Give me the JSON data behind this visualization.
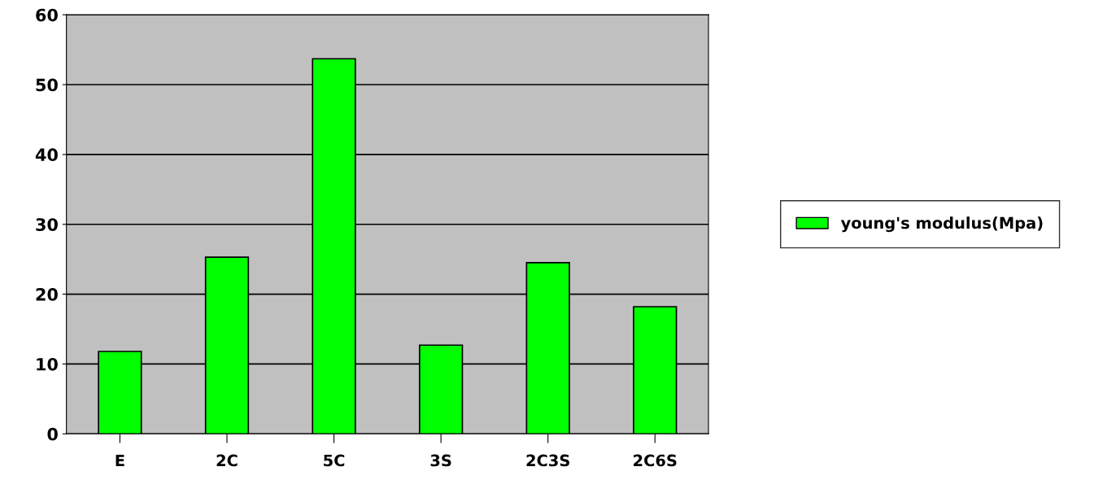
{
  "chart_data": {
    "type": "bar",
    "categories": [
      "E",
      "2C",
      "5C",
      "3S",
      "2C3S",
      "2C6S"
    ],
    "series": [
      {
        "name": "young's modulus(Mpa)",
        "color": "#00ff00",
        "values": [
          11.8,
          25.3,
          53.7,
          12.7,
          24.5,
          18.2
        ]
      }
    ],
    "ylim": [
      0,
      60
    ],
    "yticks": [
      0,
      10,
      20,
      30,
      40,
      50,
      60
    ],
    "grid": "y",
    "legend": "right"
  }
}
